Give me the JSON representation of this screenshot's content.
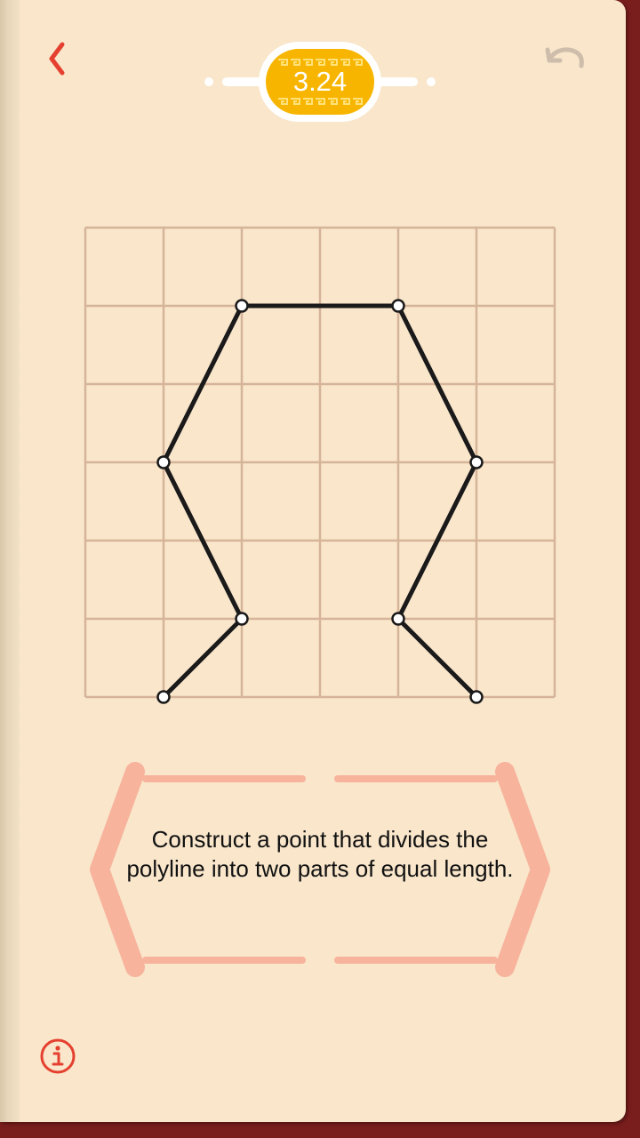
{
  "level": {
    "number": "3.24"
  },
  "task": {
    "text": "Construct a point that divides the polyline into two parts of equal length."
  },
  "grid": {
    "columns": 6,
    "rows": 6
  },
  "polyline": {
    "vertices": [
      [
        1,
        6
      ],
      [
        2,
        5
      ],
      [
        1,
        3
      ],
      [
        2,
        1
      ],
      [
        4,
        1
      ],
      [
        5,
        3
      ],
      [
        4,
        5
      ],
      [
        5,
        6
      ]
    ]
  },
  "colors": {
    "page": "#f9e6cb",
    "grid_line": "#d6b49a",
    "polyline": "#1a1a1a",
    "accent_red": "#e5402f",
    "badge_gold": "#f7b500",
    "frame_salmon": "#f7b39c",
    "undo_gray": "#cdbdaa",
    "book_cover": "#7a1d1d"
  },
  "icons": {
    "back": "chevron-left-icon",
    "undo": "undo-arrow-icon",
    "info": "info-icon"
  }
}
